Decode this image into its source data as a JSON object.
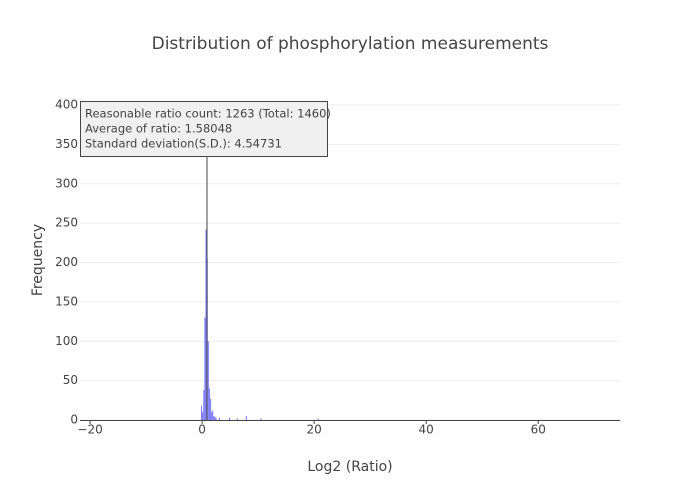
{
  "chart_data": {
    "type": "histogram",
    "title": "Distribution of phosphorylation measurements",
    "x_label": "Log2 (Ratio)",
    "y_label": "Frequency",
    "color": "#7070ff",
    "bins": [
      -0.2,
      0,
      0.2,
      0.4,
      0.6,
      0.8,
      1.0,
      1.2,
      1.4,
      1.6,
      1.8,
      2.0,
      2.2,
      2.4,
      2.6,
      3.0,
      3.2,
      4.8,
      5.0,
      6.2,
      6.4,
      7.8,
      8.0,
      10.4,
      10.6,
      20.6,
      20.8
    ],
    "values": [
      18,
      10,
      38,
      130,
      242,
      205,
      100,
      40,
      27,
      10,
      12,
      5,
      4,
      2,
      0,
      3,
      0,
      3,
      0,
      2,
      0,
      5,
      0,
      2,
      0,
      2
    ],
    "xlim": [
      -21.8,
      74.6
    ],
    "ylim": [
      0,
      400
    ],
    "xticks": [
      {
        "value": -20,
        "label": "−20"
      },
      0,
      20,
      40,
      60
    ],
    "yticks": [
      0,
      50,
      100,
      150,
      200,
      250,
      300,
      350,
      400
    ],
    "grid": true,
    "tooltip": [
      "Reasonable ratio count: 1263  (Total: 1460)",
      "Average of ratio: 1.58048",
      "Standard deviation(S.D.): 4.54731"
    ]
  }
}
